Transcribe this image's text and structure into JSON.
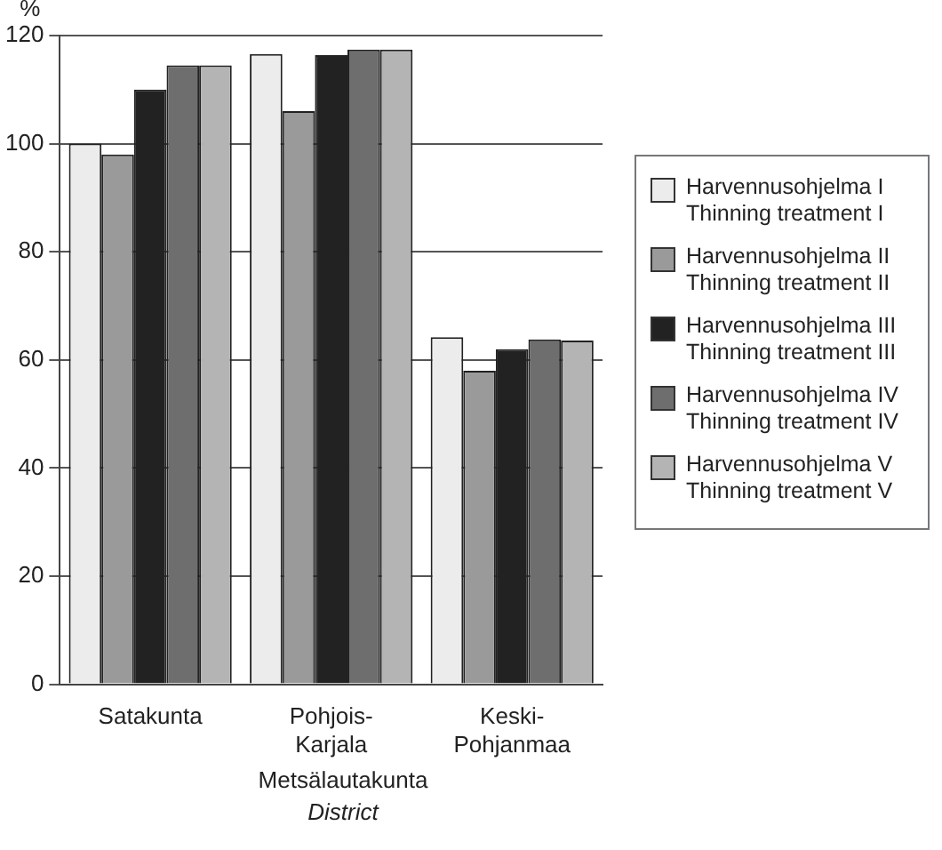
{
  "chart_data": {
    "type": "bar",
    "ylabel": "%",
    "xlabel": "Metsälautakunta\nDistrict",
    "categories": [
      "Satakunta",
      "Pohjois-\nKarjala",
      "Keski-\nPohjanmaa"
    ],
    "series": [
      {
        "name": "Harvennusohjelma I\nThinning treatment I",
        "color": "#ececec",
        "values": [
          100,
          116.6,
          64.2
        ]
      },
      {
        "name": "Harvennusohjelma II\nThinning treatment II",
        "color": "#9a9a9a",
        "values": [
          98,
          106,
          58
        ]
      },
      {
        "name": "Harvennusohjelma III\nThinning treatment III",
        "color": "#222222",
        "values": [
          110,
          116.4,
          62
        ]
      },
      {
        "name": "Harvennusohjelma IV\nThinning treatment IV",
        "color": "#6e6e6e",
        "values": [
          114.5,
          117.4,
          63.8
        ]
      },
      {
        "name": "Harvennusohjelma V\nThinning treatment V",
        "color": "#b4b4b4",
        "values": [
          114.5,
          117.4,
          63.6
        ]
      }
    ],
    "ylim": [
      0,
      120
    ],
    "yticks": [
      0,
      20,
      40,
      60,
      80,
      100,
      120
    ],
    "grid": "y",
    "legend": "right"
  }
}
